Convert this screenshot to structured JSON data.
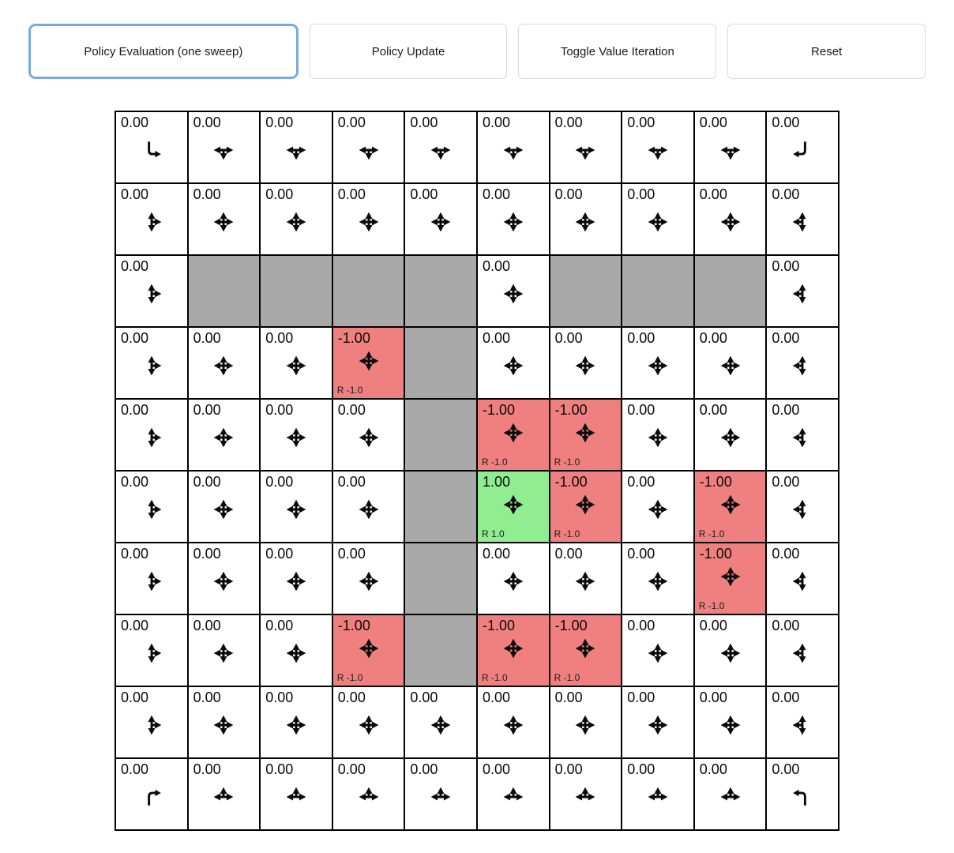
{
  "toolbar": {
    "buttons": [
      {
        "label": "Policy Evaluation (one sweep)",
        "active": true
      },
      {
        "label": "Policy Update",
        "active": false
      },
      {
        "label": "Toggle Value Iteration",
        "active": false
      },
      {
        "label": "Reset",
        "active": false
      }
    ]
  },
  "colors": {
    "wall": "#a9a9a9",
    "reward_negative": "#f08080",
    "reward_positive": "#90ee90",
    "focus_ring": "#78a9e6",
    "grid_border": "#000000"
  },
  "icon_names": {
    "udlr": "arrow-all-directions-icon",
    "dlr": "arrow-down-left-right-icon",
    "ulr": "arrow-up-left-right-icon",
    "udr": "arrow-up-down-right-icon",
    "udl": "arrow-up-down-left-icon",
    "corner-tl": "arrow-bent-down-right-icon",
    "corner-tr": "arrow-bent-down-left-icon",
    "corner-bl": "arrow-bent-up-right-icon",
    "corner-br": "arrow-bent-up-left-icon"
  },
  "grid": {
    "rows": 10,
    "cols": 10,
    "cells": [
      [
        {
          "value": "0.00",
          "type": "normal",
          "arrow": "corner-tl"
        },
        {
          "value": "0.00",
          "type": "normal",
          "arrow": "dlr"
        },
        {
          "value": "0.00",
          "type": "normal",
          "arrow": "dlr"
        },
        {
          "value": "0.00",
          "type": "normal",
          "arrow": "dlr"
        },
        {
          "value": "0.00",
          "type": "normal",
          "arrow": "dlr"
        },
        {
          "value": "0.00",
          "type": "normal",
          "arrow": "dlr"
        },
        {
          "value": "0.00",
          "type": "normal",
          "arrow": "dlr"
        },
        {
          "value": "0.00",
          "type": "normal",
          "arrow": "dlr"
        },
        {
          "value": "0.00",
          "type": "normal",
          "arrow": "dlr"
        },
        {
          "value": "0.00",
          "type": "normal",
          "arrow": "corner-tr"
        }
      ],
      [
        {
          "value": "0.00",
          "type": "normal",
          "arrow": "udr"
        },
        {
          "value": "0.00",
          "type": "normal",
          "arrow": "udlr"
        },
        {
          "value": "0.00",
          "type": "normal",
          "arrow": "udlr"
        },
        {
          "value": "0.00",
          "type": "normal",
          "arrow": "udlr"
        },
        {
          "value": "0.00",
          "type": "normal",
          "arrow": "udlr"
        },
        {
          "value": "0.00",
          "type": "normal",
          "arrow": "udlr"
        },
        {
          "value": "0.00",
          "type": "normal",
          "arrow": "udlr"
        },
        {
          "value": "0.00",
          "type": "normal",
          "arrow": "udlr"
        },
        {
          "value": "0.00",
          "type": "normal",
          "arrow": "udlr"
        },
        {
          "value": "0.00",
          "type": "normal",
          "arrow": "udl"
        }
      ],
      [
        {
          "value": "0.00",
          "type": "normal",
          "arrow": "udr"
        },
        {
          "type": "wall"
        },
        {
          "type": "wall"
        },
        {
          "type": "wall"
        },
        {
          "type": "wall"
        },
        {
          "value": "0.00",
          "type": "normal",
          "arrow": "udlr"
        },
        {
          "type": "wall"
        },
        {
          "type": "wall"
        },
        {
          "type": "wall"
        },
        {
          "value": "0.00",
          "type": "normal",
          "arrow": "udl"
        }
      ],
      [
        {
          "value": "0.00",
          "type": "normal",
          "arrow": "udr"
        },
        {
          "value": "0.00",
          "type": "normal",
          "arrow": "udlr"
        },
        {
          "value": "0.00",
          "type": "normal",
          "arrow": "udlr"
        },
        {
          "value": "-1.00",
          "type": "negative",
          "reward": "R -1.0",
          "arrow": "udlr"
        },
        {
          "type": "wall"
        },
        {
          "value": "0.00",
          "type": "normal",
          "arrow": "udlr"
        },
        {
          "value": "0.00",
          "type": "normal",
          "arrow": "udlr"
        },
        {
          "value": "0.00",
          "type": "normal",
          "arrow": "udlr"
        },
        {
          "value": "0.00",
          "type": "normal",
          "arrow": "udlr"
        },
        {
          "value": "0.00",
          "type": "normal",
          "arrow": "udl"
        }
      ],
      [
        {
          "value": "0.00",
          "type": "normal",
          "arrow": "udr"
        },
        {
          "value": "0.00",
          "type": "normal",
          "arrow": "udlr"
        },
        {
          "value": "0.00",
          "type": "normal",
          "arrow": "udlr"
        },
        {
          "value": "0.00",
          "type": "normal",
          "arrow": "udlr"
        },
        {
          "type": "wall"
        },
        {
          "value": "-1.00",
          "type": "negative",
          "reward": "R -1.0",
          "arrow": "udlr"
        },
        {
          "value": "-1.00",
          "type": "negative",
          "reward": "R -1.0",
          "arrow": "udlr"
        },
        {
          "value": "0.00",
          "type": "normal",
          "arrow": "udlr"
        },
        {
          "value": "0.00",
          "type": "normal",
          "arrow": "udlr"
        },
        {
          "value": "0.00",
          "type": "normal",
          "arrow": "udl"
        }
      ],
      [
        {
          "value": "0.00",
          "type": "normal",
          "arrow": "udr"
        },
        {
          "value": "0.00",
          "type": "normal",
          "arrow": "udlr"
        },
        {
          "value": "0.00",
          "type": "normal",
          "arrow": "udlr"
        },
        {
          "value": "0.00",
          "type": "normal",
          "arrow": "udlr"
        },
        {
          "type": "wall"
        },
        {
          "value": "1.00",
          "type": "positive",
          "reward": "R 1.0",
          "arrow": "udlr"
        },
        {
          "value": "-1.00",
          "type": "negative",
          "reward": "R -1.0",
          "arrow": "udlr"
        },
        {
          "value": "0.00",
          "type": "normal",
          "arrow": "udlr"
        },
        {
          "value": "-1.00",
          "type": "negative",
          "reward": "R -1.0",
          "arrow": "udlr"
        },
        {
          "value": "0.00",
          "type": "normal",
          "arrow": "udl"
        }
      ],
      [
        {
          "value": "0.00",
          "type": "normal",
          "arrow": "udr"
        },
        {
          "value": "0.00",
          "type": "normal",
          "arrow": "udlr"
        },
        {
          "value": "0.00",
          "type": "normal",
          "arrow": "udlr"
        },
        {
          "value": "0.00",
          "type": "normal",
          "arrow": "udlr"
        },
        {
          "type": "wall"
        },
        {
          "value": "0.00",
          "type": "normal",
          "arrow": "udlr"
        },
        {
          "value": "0.00",
          "type": "normal",
          "arrow": "udlr"
        },
        {
          "value": "0.00",
          "type": "normal",
          "arrow": "udlr"
        },
        {
          "value": "-1.00",
          "type": "negative",
          "reward": "R -1.0",
          "arrow": "udlr"
        },
        {
          "value": "0.00",
          "type": "normal",
          "arrow": "udl"
        }
      ],
      [
        {
          "value": "0.00",
          "type": "normal",
          "arrow": "udr"
        },
        {
          "value": "0.00",
          "type": "normal",
          "arrow": "udlr"
        },
        {
          "value": "0.00",
          "type": "normal",
          "arrow": "udlr"
        },
        {
          "value": "-1.00",
          "type": "negative",
          "reward": "R -1.0",
          "arrow": "udlr"
        },
        {
          "type": "wall"
        },
        {
          "value": "-1.00",
          "type": "negative",
          "reward": "R -1.0",
          "arrow": "udlr"
        },
        {
          "value": "-1.00",
          "type": "negative",
          "reward": "R -1.0",
          "arrow": "udlr"
        },
        {
          "value": "0.00",
          "type": "normal",
          "arrow": "udlr"
        },
        {
          "value": "0.00",
          "type": "normal",
          "arrow": "udlr"
        },
        {
          "value": "0.00",
          "type": "normal",
          "arrow": "udl"
        }
      ],
      [
        {
          "value": "0.00",
          "type": "normal",
          "arrow": "udr"
        },
        {
          "value": "0.00",
          "type": "normal",
          "arrow": "udlr"
        },
        {
          "value": "0.00",
          "type": "normal",
          "arrow": "udlr"
        },
        {
          "value": "0.00",
          "type": "normal",
          "arrow": "udlr"
        },
        {
          "value": "0.00",
          "type": "normal",
          "arrow": "udlr"
        },
        {
          "value": "0.00",
          "type": "normal",
          "arrow": "udlr"
        },
        {
          "value": "0.00",
          "type": "normal",
          "arrow": "udlr"
        },
        {
          "value": "0.00",
          "type": "normal",
          "arrow": "udlr"
        },
        {
          "value": "0.00",
          "type": "normal",
          "arrow": "udlr"
        },
        {
          "value": "0.00",
          "type": "normal",
          "arrow": "udl"
        }
      ],
      [
        {
          "value": "0.00",
          "type": "normal",
          "arrow": "corner-bl"
        },
        {
          "value": "0.00",
          "type": "normal",
          "arrow": "ulr"
        },
        {
          "value": "0.00",
          "type": "normal",
          "arrow": "ulr"
        },
        {
          "value": "0.00",
          "type": "normal",
          "arrow": "ulr"
        },
        {
          "value": "0.00",
          "type": "normal",
          "arrow": "ulr"
        },
        {
          "value": "0.00",
          "type": "normal",
          "arrow": "ulr"
        },
        {
          "value": "0.00",
          "type": "normal",
          "arrow": "ulr"
        },
        {
          "value": "0.00",
          "type": "normal",
          "arrow": "ulr"
        },
        {
          "value": "0.00",
          "type": "normal",
          "arrow": "ulr"
        },
        {
          "value": "0.00",
          "type": "normal",
          "arrow": "corner-br"
        }
      ]
    ]
  }
}
